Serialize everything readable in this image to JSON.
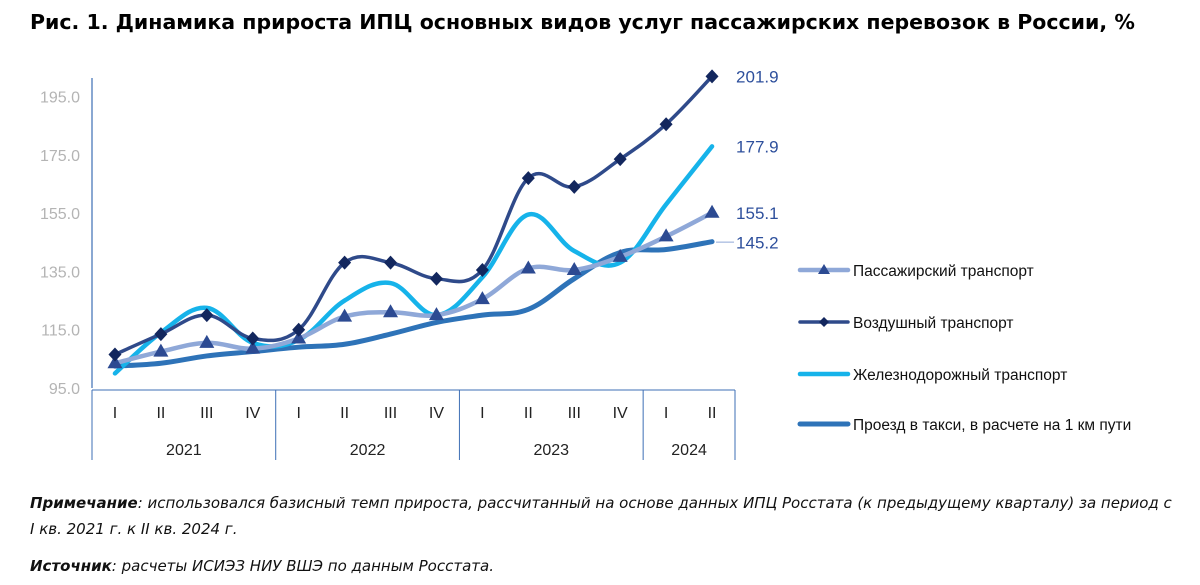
{
  "title": "Рис. 1. Динамика прироста ИПЦ основных видов услуг пассажирских перевозок в России, %",
  "note": {
    "label": "Примечание",
    "text": ": использовался базисный темп прироста, рассчитанный на основе данных ИПЦ Росстата (к предыдущему кварталу) за период с I кв. 2021 г. к II кв. 2024 г."
  },
  "source": {
    "label": "Источник",
    "text": ": расчеты ИСИЭЗ НИУ ВШЭ по данным Росстата."
  },
  "chart_data": {
    "type": "line",
    "categories": [
      "I",
      "II",
      "III",
      "IV",
      "I",
      "II",
      "III",
      "IV",
      "I",
      "II",
      "III",
      "IV",
      "I",
      "II"
    ],
    "years": [
      {
        "label": "2021",
        "span": 4
      },
      {
        "label": "2022",
        "span": 4
      },
      {
        "label": "2023",
        "span": 4
      },
      {
        "label": "2024",
        "span": 2
      }
    ],
    "yticks": [
      "95.0",
      "115.0",
      "135.0",
      "155.0",
      "175.0",
      "195.0"
    ],
    "ylim": [
      95,
      203
    ],
    "grid": false,
    "legend_position": "right",
    "series": [
      {
        "name": "Пассажирский транспорт",
        "color": "#8fa8d8",
        "width": 4.5,
        "marker": "triangle",
        "values": [
          103.5,
          107.5,
          110.5,
          108.5,
          112.0,
          119.5,
          121.0,
          120.0,
          125.5,
          136.0,
          135.5,
          140.0,
          147.0,
          155.1
        ],
        "end_label": "155.1"
      },
      {
        "name": "Воздушный транспорт",
        "color": "#2f4a8a",
        "width": 3.5,
        "marker": "diamond",
        "values": [
          106.5,
          113.5,
          120.0,
          112.0,
          115.0,
          138.0,
          138.0,
          132.5,
          135.5,
          167.0,
          164.0,
          173.5,
          185.5,
          201.9
        ],
        "end_label": "201.9"
      },
      {
        "name": "Железнодорожный транспорт",
        "color": "#16b3ea",
        "width": 4.5,
        "marker": "none",
        "values": [
          100.0,
          114.0,
          122.5,
          110.5,
          111.5,
          125.0,
          131.0,
          120.0,
          133.0,
          154.5,
          142.0,
          138.0,
          158.0,
          177.9
        ],
        "end_label": "177.9"
      },
      {
        "name": "Проезд в такси, в расчете на 1 км пути",
        "color": "#2e73b8",
        "width": 5,
        "marker": "none",
        "values": [
          102.5,
          103.5,
          106.0,
          107.5,
          109.0,
          110.0,
          113.5,
          117.5,
          120.0,
          122.0,
          132.5,
          141.5,
          142.5,
          145.2
        ],
        "end_label": "145.2"
      }
    ]
  }
}
